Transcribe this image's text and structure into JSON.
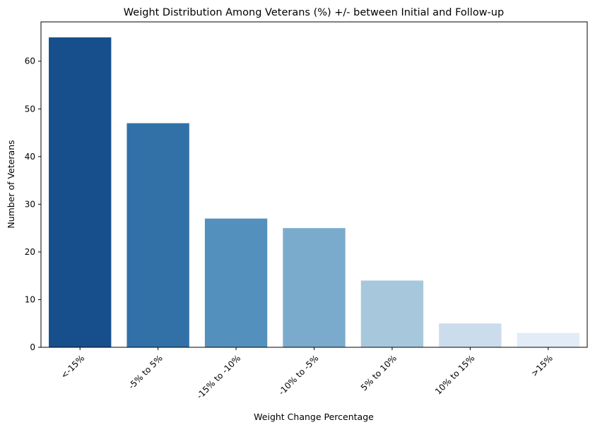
{
  "chart_data": {
    "type": "bar",
    "title": "Weight Distribution Among Veterans (%) +/- between Initial and Follow-up",
    "xlabel": "Weight Change Percentage",
    "ylabel": "Number of Veterans",
    "categories": [
      "<-15%",
      "-5% to 5%",
      "-15% to -10%",
      "-10% to -5%",
      "5% to 10%",
      "10% to 15%",
      ">15%"
    ],
    "values": [
      65,
      47,
      27,
      25,
      14,
      5,
      3
    ],
    "colors": [
      "#164f8c",
      "#3171a8",
      "#5490bd",
      "#7aabcd",
      "#a7c8dc",
      "#cbdcec",
      "#e2ecf6"
    ],
    "yticks": [
      0,
      10,
      20,
      30,
      40,
      50,
      60
    ],
    "ylim": [
      0,
      68.25
    ],
    "grid": false,
    "legend": "none",
    "x_tick_rotation": -45
  }
}
